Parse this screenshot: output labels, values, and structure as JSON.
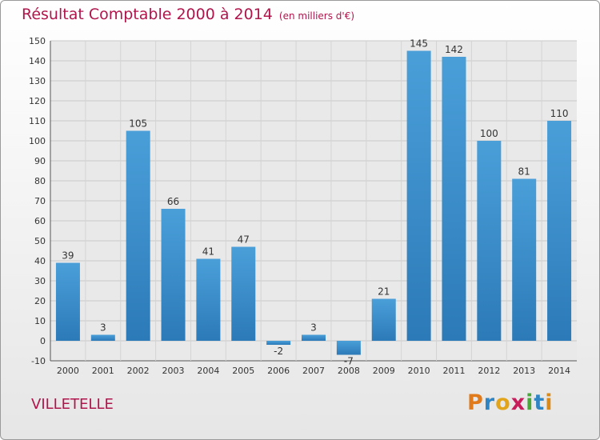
{
  "header": {
    "title": "Résultat Comptable 2000 à 2014",
    "unit": "(en milliers d'€)"
  },
  "place_name": "VILLETELLE",
  "logo": {
    "letters": [
      "P",
      "r",
      "o",
      "x",
      "i",
      "t",
      "i"
    ],
    "colors": [
      "#e07a1b",
      "#2f84c4",
      "#e2a41a",
      "#c81d5b",
      "#4aa83a",
      "#2f84c4",
      "#d98a1b"
    ]
  },
  "colors": {
    "bar": "#4a9fd9",
    "bar_dark": "#2c7ab8",
    "title": "#b0154c"
  },
  "chart_data": {
    "type": "bar",
    "categories": [
      "2000",
      "2001",
      "2002",
      "2003",
      "2004",
      "2005",
      "2006",
      "2007",
      "2008",
      "2009",
      "2010",
      "2011",
      "2012",
      "2013",
      "2014"
    ],
    "values": [
      39,
      3,
      105,
      66,
      41,
      47,
      -2,
      3,
      -7,
      21,
      145,
      142,
      100,
      81,
      110
    ],
    "data_labels": [
      "39",
      "3",
      "105",
      "66",
      "41",
      "47",
      "-2",
      "3",
      "-7",
      "21",
      "145",
      "142",
      "100",
      "81",
      "110"
    ],
    "ylim": [
      -10,
      150
    ],
    "yticks": [
      "-10",
      "0",
      "10",
      "20",
      "30",
      "40",
      "50",
      "60",
      "70",
      "80",
      "90",
      "100",
      "110",
      "120",
      "130",
      "140",
      "150"
    ],
    "grid": true
  }
}
